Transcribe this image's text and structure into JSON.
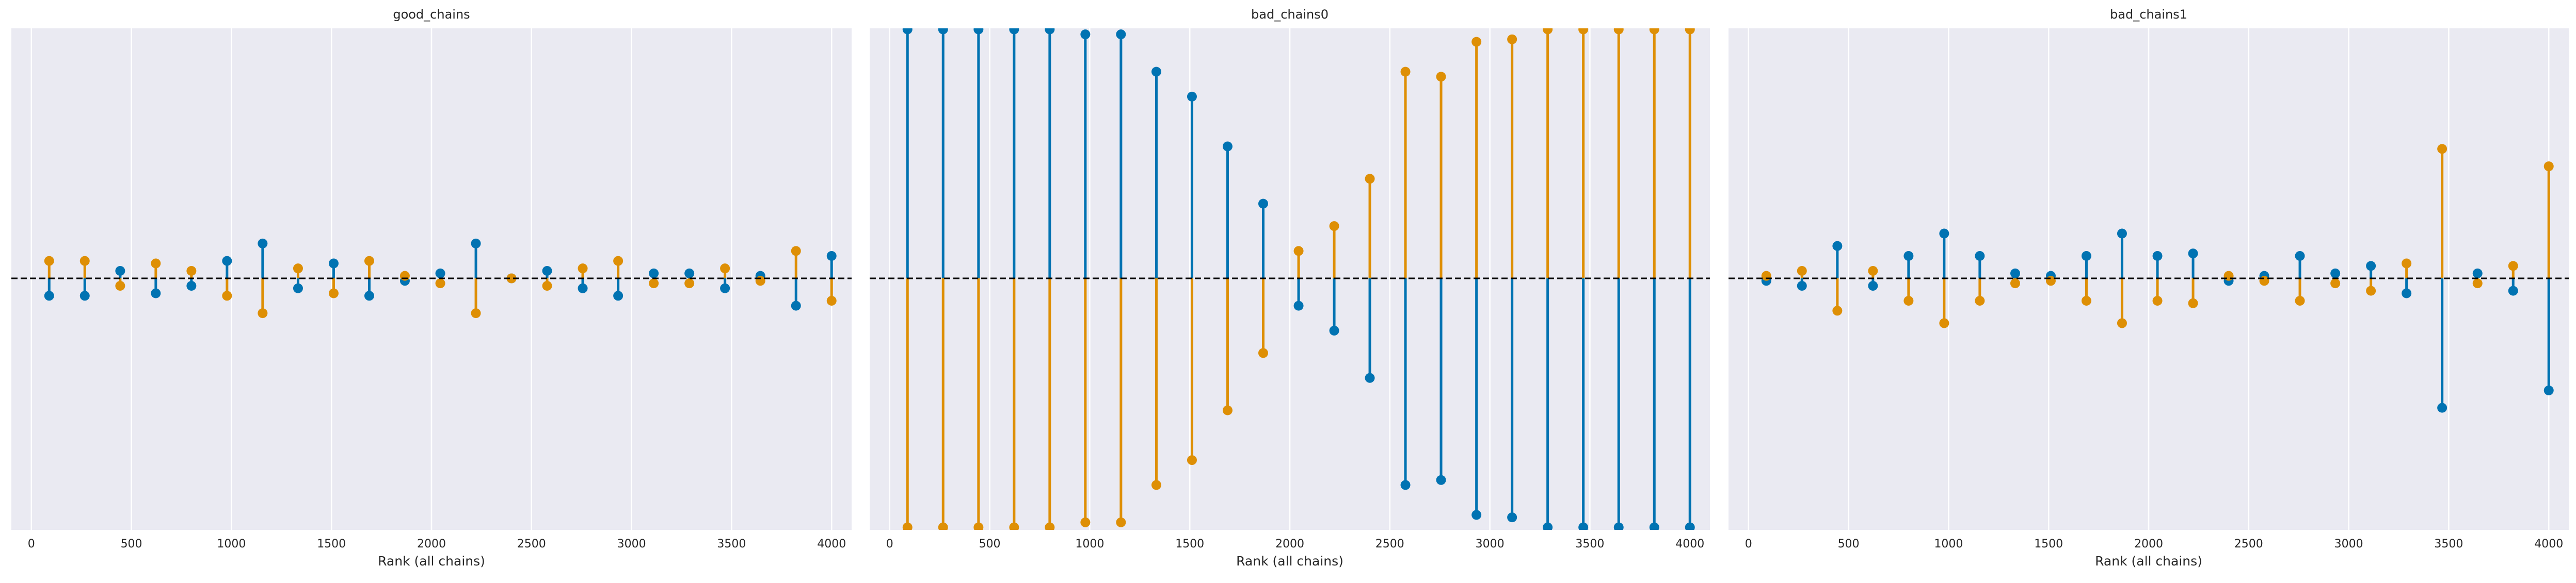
{
  "figure": {
    "colors": {
      "background": "#eaeaf2",
      "grid": "#ffffff",
      "series_blue": "#0173b2",
      "series_orange": "#de8f05",
      "reference_line": "#000000",
      "text": "#262626"
    }
  },
  "chart_data": [
    {
      "type": "rank_plot",
      "title": "good_chains",
      "xlabel": "Rank (all chains)",
      "xlim": [
        -100,
        4100
      ],
      "xticks": [
        0,
        500,
        1000,
        1500,
        2000,
        2500,
        3000,
        3500,
        4000
      ],
      "xtick_labels": [
        "0",
        "500",
        "1000",
        "1500",
        "2000",
        "2500",
        "3000",
        "3500",
        "4000"
      ],
      "ylim": [
        -1,
        1
      ],
      "reference_line_y": 0,
      "reference_line_style": "dashed",
      "grid": true,
      "series": [
        {
          "color": "#0173b2",
          "x": [
            89,
            267,
            444,
            622,
            800,
            978,
            1156,
            1333,
            1511,
            1689,
            1867,
            2044,
            2222,
            2400,
            2578,
            2756,
            2933,
            3111,
            3289,
            3467,
            3644,
            3822,
            4000
          ],
          "values": [
            -0.07,
            -0.07,
            0.03,
            -0.06,
            -0.03,
            0.07,
            0.14,
            -0.04,
            0.06,
            -0.07,
            -0.01,
            0.02,
            0.14,
            0.0,
            0.03,
            -0.04,
            -0.07,
            0.02,
            0.02,
            -0.04,
            0.01,
            -0.11,
            0.09
          ]
        },
        {
          "color": "#de8f05",
          "x": [
            89,
            267,
            444,
            622,
            800,
            978,
            1156,
            1333,
            1511,
            1689,
            1867,
            2044,
            2222,
            2400,
            2578,
            2756,
            2933,
            3111,
            3289,
            3467,
            3644,
            3822,
            4000
          ],
          "values": [
            0.07,
            0.07,
            -0.03,
            0.06,
            0.03,
            -0.07,
            -0.14,
            0.04,
            -0.06,
            0.07,
            0.01,
            -0.02,
            -0.14,
            0.0,
            -0.03,
            0.04,
            0.07,
            -0.02,
            -0.02,
            0.04,
            -0.01,
            0.11,
            -0.09
          ]
        }
      ]
    },
    {
      "type": "rank_plot",
      "title": "bad_chains0",
      "xlabel": "Rank (all chains)",
      "xlim": [
        -100,
        4100
      ],
      "xticks": [
        0,
        500,
        1000,
        1500,
        2000,
        2500,
        3000,
        3500,
        4000
      ],
      "xtick_labels": [
        "0",
        "500",
        "1000",
        "1500",
        "2000",
        "2500",
        "3000",
        "3500",
        "4000"
      ],
      "ylim": [
        -1,
        1
      ],
      "reference_line_y": 0,
      "reference_line_style": "dashed",
      "grid": true,
      "series": [
        {
          "color": "#0173b2",
          "x": [
            89,
            267,
            444,
            622,
            800,
            978,
            1156,
            1333,
            1511,
            1689,
            1867,
            2044,
            2222,
            2400,
            2578,
            2756,
            2933,
            3111,
            3289,
            3467,
            3644,
            3822,
            4000
          ],
          "values": [
            1.0,
            1.0,
            1.0,
            1.0,
            1.0,
            0.98,
            0.98,
            0.83,
            0.73,
            0.53,
            0.3,
            -0.11,
            -0.21,
            -0.4,
            -0.83,
            -0.81,
            -0.95,
            -0.96,
            -1.0,
            -1.0,
            -1.0,
            -1.0,
            -1.0
          ]
        },
        {
          "color": "#de8f05",
          "x": [
            89,
            267,
            444,
            622,
            800,
            978,
            1156,
            1333,
            1511,
            1689,
            1867,
            2044,
            2222,
            2400,
            2578,
            2756,
            2933,
            3111,
            3289,
            3467,
            3644,
            3822,
            4000
          ],
          "values": [
            -1.0,
            -1.0,
            -1.0,
            -1.0,
            -1.0,
            -0.98,
            -0.98,
            -0.83,
            -0.73,
            -0.53,
            -0.3,
            0.11,
            0.21,
            0.4,
            0.83,
            0.81,
            0.95,
            0.96,
            1.0,
            1.0,
            1.0,
            1.0,
            1.0
          ]
        }
      ]
    },
    {
      "type": "rank_plot",
      "title": "bad_chains1",
      "xlabel": "Rank (all chains)",
      "xlim": [
        -100,
        4100
      ],
      "xticks": [
        0,
        500,
        1000,
        1500,
        2000,
        2500,
        3000,
        3500,
        4000
      ],
      "xtick_labels": [
        "0",
        "500",
        "1000",
        "1500",
        "2000",
        "2500",
        "3000",
        "3500",
        "4000"
      ],
      "ylim": [
        -1,
        1
      ],
      "reference_line_y": 0,
      "reference_line_style": "dashed",
      "grid": true,
      "series": [
        {
          "color": "#0173b2",
          "x": [
            89,
            267,
            444,
            622,
            800,
            978,
            1156,
            1333,
            1511,
            1689,
            1867,
            2044,
            2222,
            2400,
            2578,
            2756,
            2933,
            3111,
            3289,
            3467,
            3644,
            3822,
            4000
          ],
          "values": [
            -0.01,
            -0.03,
            0.13,
            -0.03,
            0.09,
            0.18,
            0.09,
            0.02,
            0.01,
            0.09,
            0.18,
            0.09,
            0.1,
            -0.01,
            0.01,
            0.09,
            0.02,
            0.05,
            -0.06,
            -0.52,
            0.02,
            -0.05,
            -0.45
          ]
        },
        {
          "color": "#de8f05",
          "x": [
            89,
            267,
            444,
            622,
            800,
            978,
            1156,
            1333,
            1511,
            1689,
            1867,
            2044,
            2222,
            2400,
            2578,
            2756,
            2933,
            3111,
            3289,
            3467,
            3644,
            3822,
            4000
          ],
          "values": [
            0.01,
            0.03,
            -0.13,
            0.03,
            -0.09,
            -0.18,
            -0.09,
            -0.02,
            -0.01,
            -0.09,
            -0.18,
            -0.09,
            -0.1,
            0.01,
            -0.01,
            -0.09,
            -0.02,
            -0.05,
            0.06,
            0.52,
            -0.02,
            0.05,
            0.45
          ]
        }
      ]
    }
  ]
}
